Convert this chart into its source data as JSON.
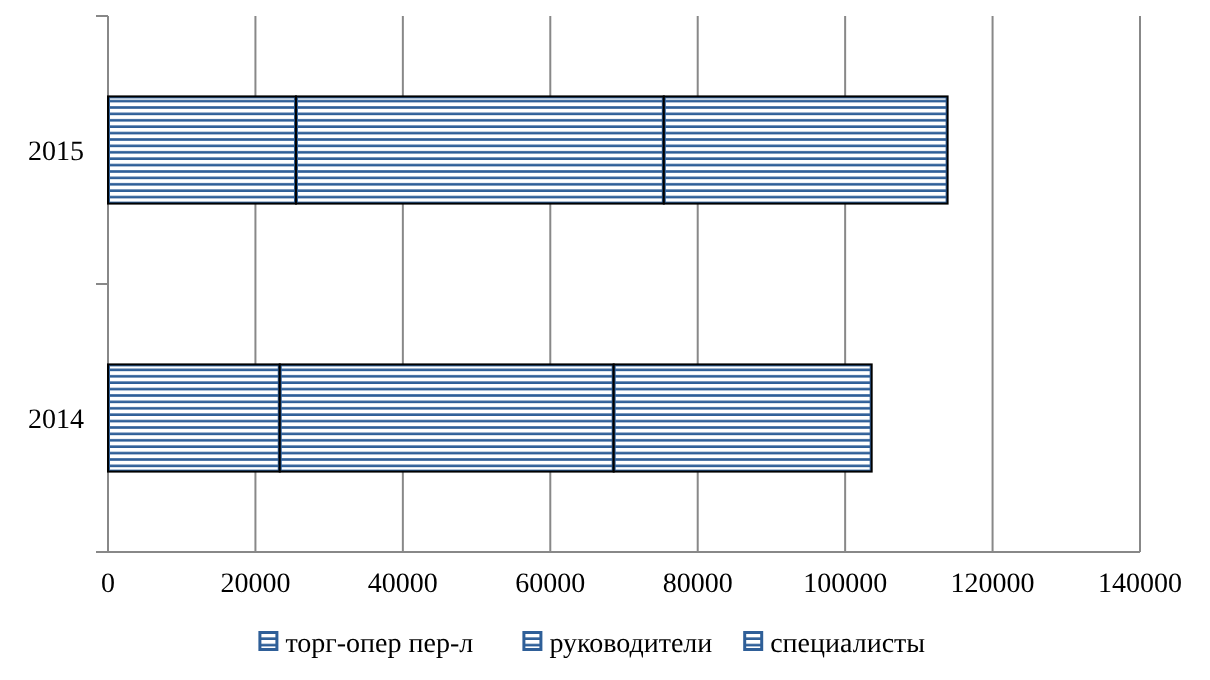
{
  "chart_data": {
    "type": "bar",
    "orientation": "horizontal",
    "stacked": true,
    "categories": [
      "2015",
      "2014"
    ],
    "series": [
      {
        "name": "торг-опер пер-л",
        "color": "#2f5f98",
        "values": [
          25500,
          23300
        ]
      },
      {
        "name": "руководители",
        "color": "#2f5f98",
        "values": [
          49900,
          45300
        ]
      },
      {
        "name": "специалисты",
        "color": "#2f5f98",
        "values": [
          38500,
          35000
        ]
      }
    ],
    "xlim": [
      0,
      140000
    ],
    "xticks": [
      0,
      20000,
      40000,
      60000,
      80000,
      100000,
      120000,
      140000
    ],
    "grid": "x",
    "legend": "bottom"
  }
}
